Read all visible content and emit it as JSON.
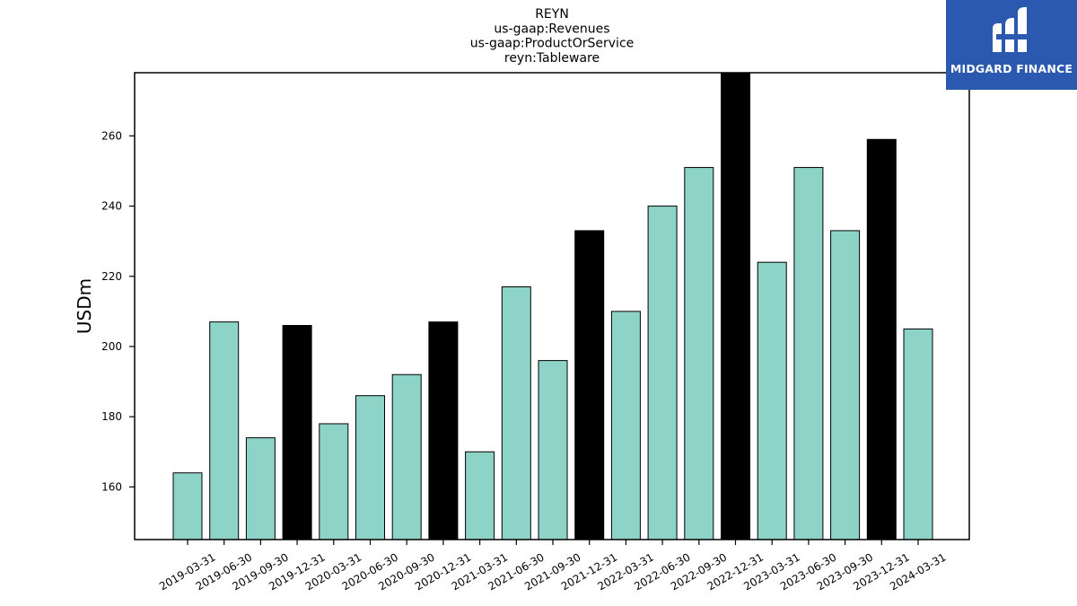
{
  "chart_data": {
    "type": "bar",
    "title_lines": [
      "REYN",
      "us-gaap:Revenues",
      "us-gaap:ProductOrService",
      "reyn:Tableware"
    ],
    "xlabel": "",
    "ylabel": "USDm",
    "ylim": [
      145,
      278
    ],
    "yticks": [
      160,
      180,
      200,
      220,
      240,
      260
    ],
    "grid": false,
    "categories": [
      "2019-03-31",
      "2019-06-30",
      "2019-09-30",
      "2019-12-31",
      "2020-03-31",
      "2020-06-30",
      "2020-09-30",
      "2020-12-31",
      "2021-03-31",
      "2021-06-30",
      "2021-09-30",
      "2021-12-31",
      "2022-03-31",
      "2022-06-30",
      "2022-09-30",
      "2022-12-31",
      "2023-03-31",
      "2023-06-30",
      "2023-09-30",
      "2023-12-31",
      "2024-03-31"
    ],
    "values": [
      164,
      207,
      174,
      206,
      178,
      186,
      192,
      207,
      170,
      217,
      196,
      233,
      210,
      240,
      251,
      278,
      224,
      251,
      233,
      259,
      205
    ],
    "colors": {
      "quarter": "#8dd3c7",
      "year_end": "#000000",
      "edge": "#000000"
    }
  },
  "logo": {
    "text": "MIDGARD FINANCE",
    "background": "#2b59b0"
  }
}
